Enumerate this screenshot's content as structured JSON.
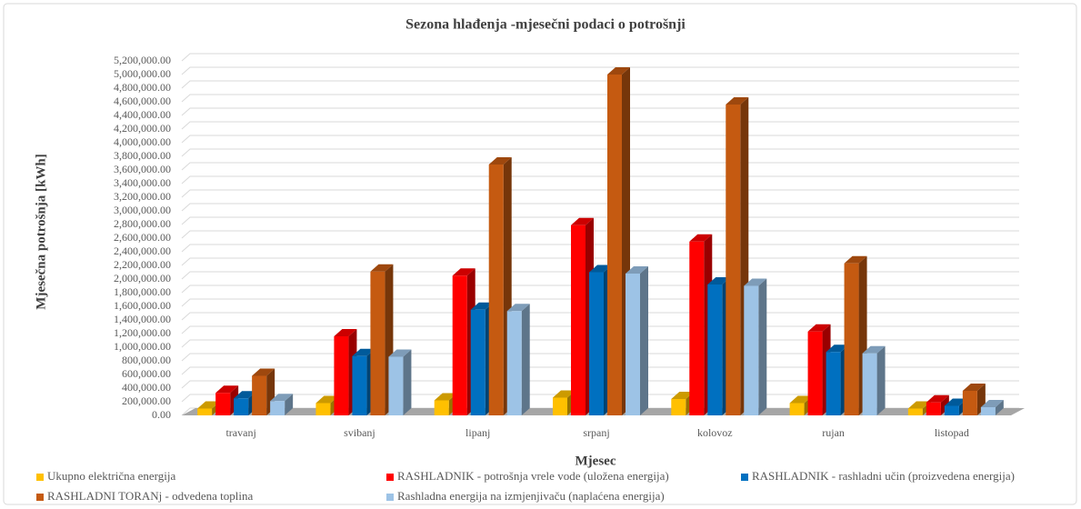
{
  "chart_data": {
    "type": "bar3d",
    "title": "Sezona hlađenja -mjesečni podaci o potrošnji",
    "x_label": "Mjesec",
    "y_label": "Mjesečna potrošnja [kWh]",
    "categories": [
      "travanj",
      "svibanj",
      "lipanj",
      "srpanj",
      "kolovoz",
      "rujan",
      "listopad"
    ],
    "series": [
      {
        "name": "Ukupno električna energija",
        "color": "#ffc000",
        "values": [
          100000,
          180000,
          220000,
          260000,
          240000,
          180000,
          100000
        ]
      },
      {
        "name": "RASHLADNIK - potrošnja vrele vode (uložena energija)",
        "color": "#ff0000",
        "values": [
          330000,
          1160000,
          2050000,
          2790000,
          2550000,
          1230000,
          190000
        ]
      },
      {
        "name": "RASHLADNIK - rashladni učin (proizvedena energija)",
        "color": "#0070c0",
        "values": [
          250000,
          870000,
          1550000,
          2100000,
          1920000,
          930000,
          140000
        ]
      },
      {
        "name": "RASHLADNI TORANj - odvedena toplina",
        "color": "#c55a11",
        "values": [
          580000,
          2110000,
          3680000,
          5000000,
          4560000,
          2230000,
          360000
        ]
      },
      {
        "name": "Rashladna energija na izmjenjivaču (naplaćena energija)",
        "color": "#9dc3e6",
        "values": [
          210000,
          860000,
          1530000,
          2080000,
          1900000,
          910000,
          120000
        ]
      }
    ],
    "ylim": [
      0,
      5200000
    ],
    "yticks": [
      {
        "value": 0,
        "label": "0.00"
      },
      {
        "value": 200000,
        "label": "200,000.00"
      },
      {
        "value": 400000,
        "label": "400,000.00"
      },
      {
        "value": 600000,
        "label": "600,000.00"
      },
      {
        "value": 800000,
        "label": "800,000.00"
      },
      {
        "value": 1000000,
        "label": "1,000,000.00"
      },
      {
        "value": 1200000,
        "label": "1,200,000.00"
      },
      {
        "value": 1400000,
        "label": "1,400,000.00"
      },
      {
        "value": 1600000,
        "label": "1,600,000.00"
      },
      {
        "value": 1800000,
        "label": "1,800,000.00"
      },
      {
        "value": 2000000,
        "label": "2,000,000.00"
      },
      {
        "value": 2200000,
        "label": "2,200,000.00"
      },
      {
        "value": 2400000,
        "label": "2,400,000.00"
      },
      {
        "value": 2600000,
        "label": "2,600,000.00"
      },
      {
        "value": 2800000,
        "label": "2,800,000.00"
      },
      {
        "value": 3000000,
        "label": "3,000,000.00"
      },
      {
        "value": 3200000,
        "label": "3,200,000.00"
      },
      {
        "value": 3400000,
        "label": "3,400,000.00"
      },
      {
        "value": 3600000,
        "label": "3,600,000.00"
      },
      {
        "value": 3800000,
        "label": "3,800,000.00"
      },
      {
        "value": 4000000,
        "label": "4,000,000.00"
      },
      {
        "value": 4200000,
        "label": "4,200,000.00"
      },
      {
        "value": 4400000,
        "label": "4,400,000.00"
      },
      {
        "value": 4600000,
        "label": "4,600,000.00"
      },
      {
        "value": 4800000,
        "label": "4,800,000.00"
      },
      {
        "value": 5000000,
        "label": "5,000,000.00"
      },
      {
        "value": 5200000,
        "label": "5,200,000.00"
      }
    ],
    "grid": true
  }
}
